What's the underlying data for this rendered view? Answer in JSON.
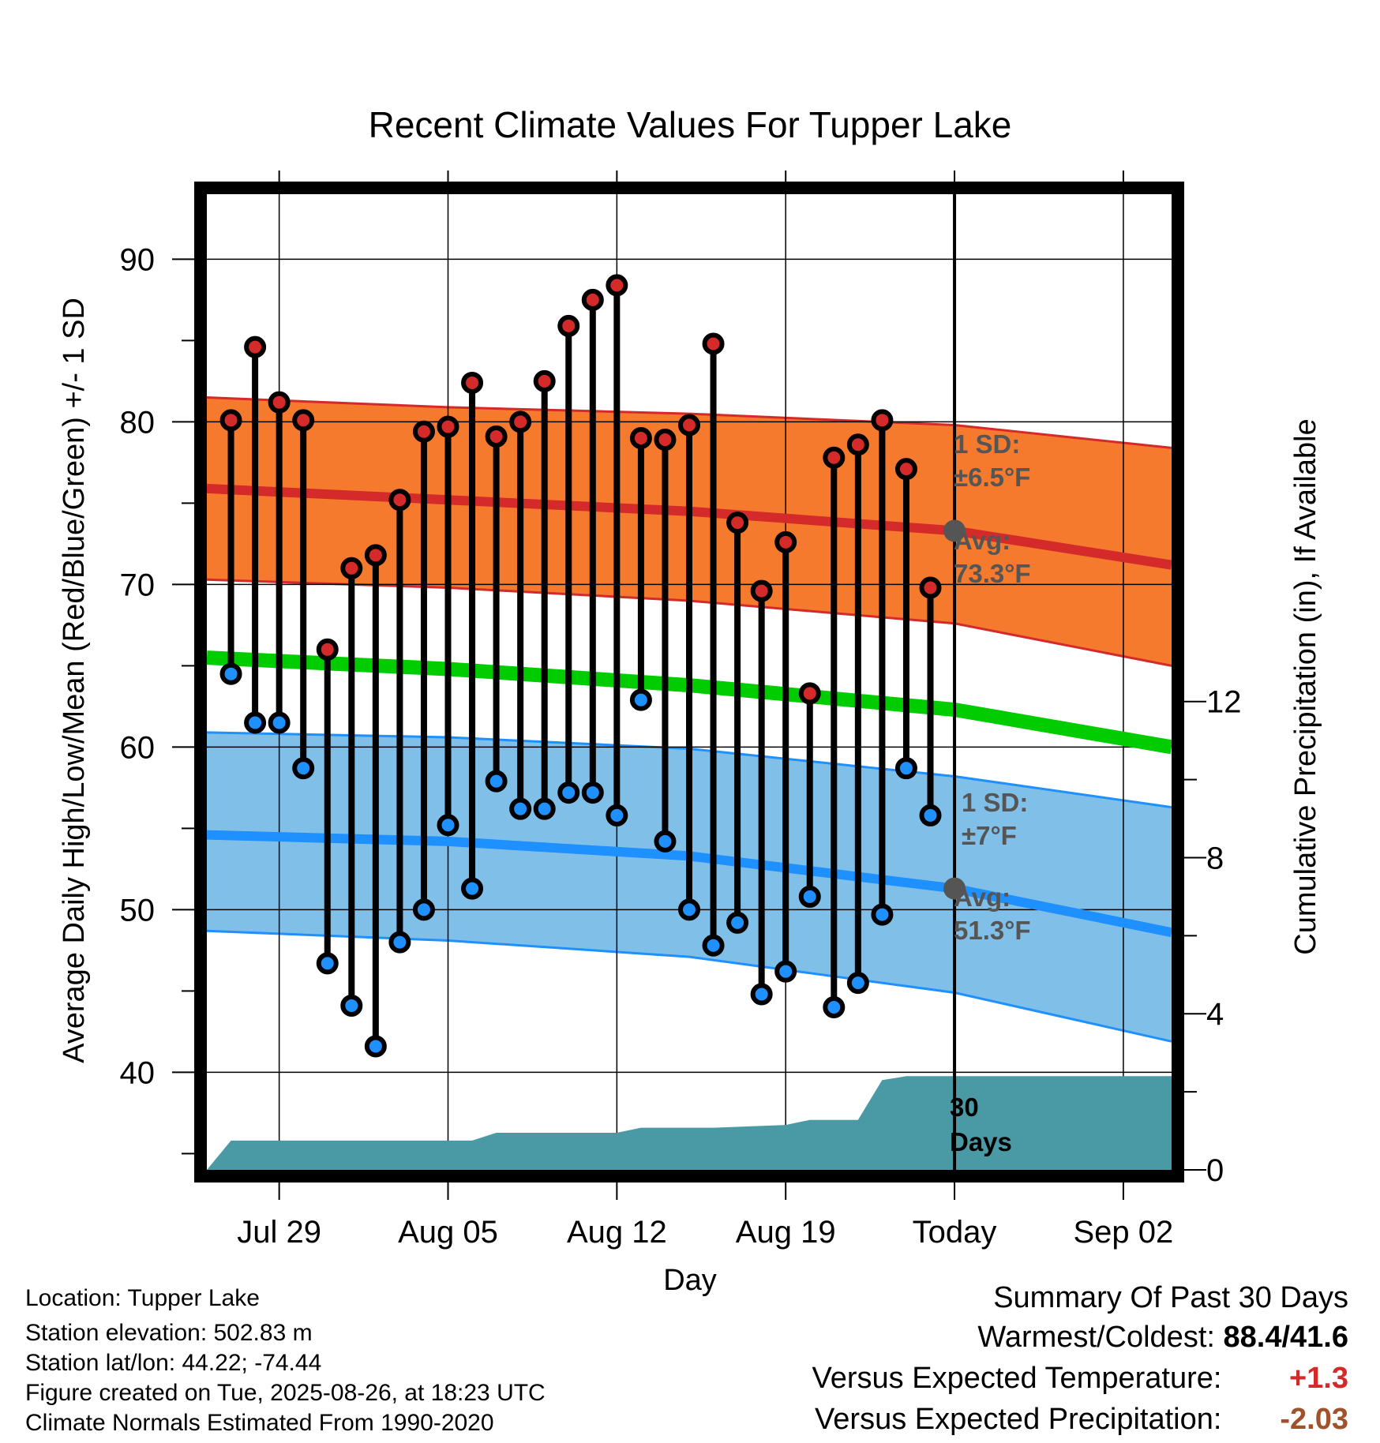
{
  "chart_data": {
    "type": "line",
    "title": "Recent Climate Values For Tupper Lake",
    "xlabel": "Day",
    "ylabel": "Average Daily High/Low/Mean (Red/Blue/Green) +/- 1 SD",
    "y2label": "Cumulative Precipitation (in), If Available",
    "ylim": [
      34,
      94
    ],
    "y2lim": [
      0,
      25
    ],
    "xlim": [
      "2025-07-26",
      "2025-09-04"
    ],
    "x_ticks": [
      {
        "date": "2025-07-29",
        "label": "Jul 29"
      },
      {
        "date": "2025-08-05",
        "label": "Aug 05"
      },
      {
        "date": "2025-08-12",
        "label": "Aug 12"
      },
      {
        "date": "2025-08-19",
        "label": "Aug 19"
      },
      {
        "date": "2025-08-26",
        "label": "Today"
      },
      {
        "date": "2025-09-02",
        "label": "Sep 02"
      }
    ],
    "y_ticks": [
      40,
      50,
      60,
      70,
      80,
      90
    ],
    "y2_ticks": [
      0,
      4,
      8,
      12
    ],
    "today": "2025-08-26",
    "grid": true,
    "observed": {
      "dates": [
        "2025-07-27",
        "2025-07-28",
        "2025-07-29",
        "2025-07-30",
        "2025-07-31",
        "2025-08-01",
        "2025-08-02",
        "2025-08-03",
        "2025-08-04",
        "2025-08-05",
        "2025-08-06",
        "2025-08-07",
        "2025-08-08",
        "2025-08-09",
        "2025-08-10",
        "2025-08-11",
        "2025-08-12",
        "2025-08-13",
        "2025-08-14",
        "2025-08-15",
        "2025-08-16",
        "2025-08-17",
        "2025-08-18",
        "2025-08-19",
        "2025-08-20",
        "2025-08-21",
        "2025-08-22",
        "2025-08-23",
        "2025-08-24",
        "2025-08-25"
      ],
      "high": [
        80.1,
        84.6,
        81.2,
        80.1,
        66.0,
        71.0,
        71.8,
        75.2,
        79.4,
        79.7,
        82.4,
        79.1,
        80.0,
        82.5,
        85.9,
        87.5,
        88.4,
        79.0,
        78.9,
        79.8,
        84.8,
        73.8,
        69.6,
        72.6,
        63.3,
        77.8,
        78.6,
        80.1,
        77.1,
        69.8
      ],
      "low": [
        64.5,
        61.5,
        61.5,
        58.7,
        46.7,
        44.1,
        41.6,
        48.0,
        50.0,
        55.2,
        51.3,
        57.9,
        56.2,
        56.2,
        57.2,
        57.2,
        55.8,
        62.9,
        54.2,
        50.0,
        47.8,
        49.2,
        44.8,
        46.2,
        50.8,
        44.0,
        45.5,
        49.7,
        58.7,
        55.8
      ]
    },
    "normals": {
      "dates": [
        "2025-07-26",
        "2025-08-05",
        "2025-08-15",
        "2025-08-26",
        "2025-09-04"
      ],
      "high_mean": [
        75.9,
        75.2,
        74.5,
        73.3,
        71.2
      ],
      "high_upper": [
        81.5,
        80.9,
        80.5,
        79.8,
        78.4
      ],
      "high_lower": [
        70.3,
        69.8,
        69.0,
        67.6,
        65.0
      ],
      "mean": [
        65.5,
        64.8,
        63.8,
        62.3,
        60.0
      ],
      "low_mean": [
        54.6,
        54.2,
        53.3,
        51.3,
        48.6
      ],
      "low_upper": [
        60.9,
        60.6,
        59.9,
        58.2,
        56.3
      ],
      "low_lower": [
        48.7,
        48.1,
        47.1,
        44.9,
        41.9
      ]
    },
    "precip": {
      "dates": [
        "2025-07-26",
        "2025-07-27",
        "2025-08-06",
        "2025-08-07",
        "2025-08-12",
        "2025-08-13",
        "2025-08-16",
        "2025-08-19",
        "2025-08-20",
        "2025-08-22",
        "2025-08-23",
        "2025-08-24",
        "2025-09-04"
      ],
      "cumulative": [
        0.0,
        0.75,
        0.75,
        0.95,
        0.95,
        1.08,
        1.08,
        1.15,
        1.28,
        1.28,
        2.3,
        2.4,
        2.4
      ]
    },
    "colors": {
      "high_band": "#f57a2e",
      "high_mean": "#d42a2a",
      "low_band": "#80c0e8",
      "low_mean": "#1e90ff",
      "mean": "#00cc00",
      "high_marker": "#d42a2a",
      "low_marker": "#1e90ff",
      "precip": "#4a9aa6",
      "annotation": "#555555"
    },
    "annotations": {
      "high_sd_label": "1 SD:",
      "high_sd_value": "±6.5°F",
      "high_avg_label": "Avg:",
      "high_avg_value": "73.3°F",
      "low_sd_label": "1 SD:",
      "low_sd_value": "±7°F",
      "low_avg_label": "Avg:",
      "low_avg_value": "51.3°F",
      "precip_days_line1": "30",
      "precip_days_line2": "Days"
    }
  },
  "info": {
    "location": "Location: Tupper Lake",
    "elevation": "Station elevation: 502.83 m",
    "latlon": "Station lat/lon: 44.22; -74.44",
    "created": "Figure created on Tue, 2025-08-26, at 18:23 UTC",
    "normals": "Climate Normals Estimated From 1990-2020"
  },
  "summary": {
    "heading": "Summary Of Past 30 Days",
    "warm_cold_label": "Warmest/Coldest:",
    "warm_cold_value": "88.4/41.6",
    "temp_label": "Versus Expected Temperature:",
    "temp_value": "+1.3",
    "temp_color": "#d42a2a",
    "precip_label": "Versus Expected Precipitation:",
    "precip_value": "-2.03",
    "precip_color": "#a0522d"
  }
}
